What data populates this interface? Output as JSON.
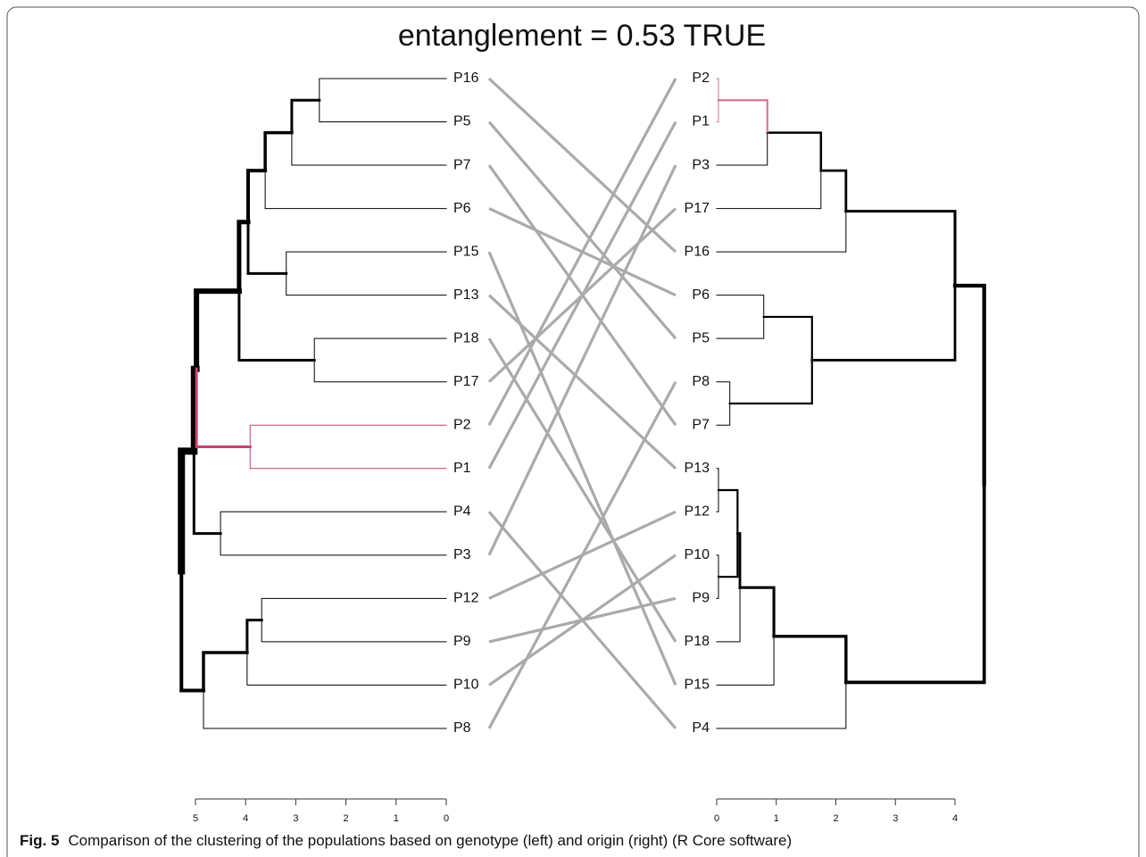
{
  "chart_data": {
    "type": "tanglegram",
    "title": "entanglement = 0.53 TRUE",
    "left": {
      "xlim": [
        0,
        5
      ],
      "xticks": [
        5,
        4,
        3,
        2,
        1,
        0
      ],
      "tree": {
        "height": 5.28,
        "children": [
          {
            "height": 5.03,
            "children": [
              {
                "height": 4.98,
                "children": [
                  {
                    "height": 4.13,
                    "children": [
                      {
                        "height": 3.95,
                        "children": [
                          {
                            "height": 3.61,
                            "children": [
                              {
                                "height": 3.08,
                                "children": [
                                  {
                                    "height": 2.53,
                                    "children": [
                                      "P16",
                                      "P5"
                                    ]
                                  },
                                  "P7"
                                ]
                              },
                              "P6"
                            ]
                          },
                          {
                            "height": 3.19,
                            "children": [
                              "P15",
                              "P13"
                            ]
                          }
                        ]
                      },
                      {
                        "height": 2.63,
                        "children": [
                          "P18",
                          "P17"
                        ]
                      }
                    ]
                  },
                  {
                    "height": 3.91,
                    "color": "#c8426a",
                    "children": [
                      "P2",
                      "P1"
                    ]
                  }
                ]
              },
              {
                "height": 4.5,
                "children": [
                  "P4",
                  "P3"
                ]
              }
            ]
          },
          {
            "height": 4.84,
            "children": [
              {
                "height": 3.97,
                "children": [
                  {
                    "height": 3.68,
                    "children": [
                      "P12",
                      "P9"
                    ]
                  },
                  "P10"
                ]
              },
              "P8"
            ]
          }
        ]
      }
    },
    "right": {
      "xlim": [
        0,
        4
      ],
      "xticks": [
        0,
        1,
        2,
        3,
        4
      ],
      "tree": {
        "height": 4.49,
        "children": [
          {
            "height": 4.0,
            "children": [
              {
                "height": 2.17,
                "children": [
                  {
                    "height": 1.75,
                    "children": [
                      {
                        "height": 0.85,
                        "children": [
                          {
                            "height": 0.03,
                            "color": "#d6749a",
                            "children": [
                              "P2",
                              "P1"
                            ]
                          },
                          "P3"
                        ]
                      },
                      "P17"
                    ]
                  },
                  "P16"
                ]
              },
              {
                "height": 1.6,
                "children": [
                  {
                    "height": 0.79,
                    "children": [
                      "P6",
                      "P5"
                    ]
                  },
                  {
                    "height": 0.22,
                    "children": [
                      "P8",
                      "P7"
                    ]
                  }
                ]
              }
            ]
          },
          {
            "height": 2.17,
            "children": [
              {
                "height": 0.96,
                "children": [
                  {
                    "height": 0.39,
                    "children": [
                      {
                        "height": 0.35,
                        "children": [
                          {
                            "height": 0.03,
                            "children": [
                              "P13",
                              "P12"
                            ]
                          },
                          {
                            "height": 0.03,
                            "children": [
                              "P10",
                              "P9"
                            ]
                          }
                        ]
                      },
                      "P18"
                    ]
                  },
                  "P15"
                ]
              },
              "P4"
            ]
          }
        ]
      }
    },
    "caption": {
      "label": "Fig. 5",
      "text": "Comparison of the clustering of the populations based on genotype (left) and origin (right) (R Core software)"
    }
  }
}
